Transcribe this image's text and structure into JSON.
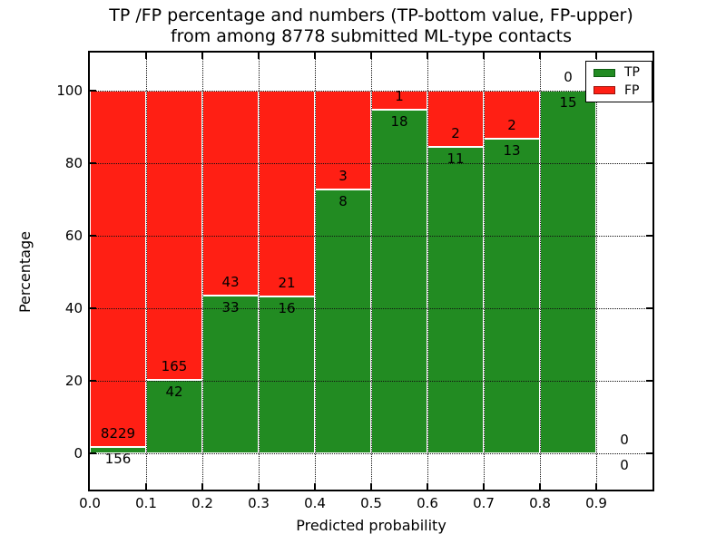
{
  "figure": {
    "title_line1": "TP /FP percentage and numbers (TP-bottom value, FP-upper)",
    "title_line2": "from among 8778 submitted ML-type contacts"
  },
  "axes": {
    "xlabel": "Predicted probability",
    "ylabel": "Percentage",
    "xtick_labels": [
      "0.0",
      "0.1",
      "0.2",
      "0.3",
      "0.4",
      "0.5",
      "0.6",
      "0.7",
      "0.8",
      "0.9"
    ],
    "ytick_values": [
      0,
      20,
      40,
      60,
      80,
      100
    ],
    "ytick_labels": [
      "0",
      "20",
      "40",
      "60",
      "80",
      "100"
    ],
    "xlim": [
      0.0,
      1.0
    ],
    "ylim": [
      -10,
      110
    ],
    "grid_style": "dotted"
  },
  "legend": {
    "position": "upper right",
    "entries": [
      {
        "label": "TP",
        "color": "#228b22",
        "edge": "#0e5c12"
      },
      {
        "label": "FP",
        "color": "#ff1f14",
        "edge": "#99120a"
      }
    ]
  },
  "colors": {
    "tp_green": "#228b22",
    "fp_red": "#ff1f14",
    "background": "#ffffff",
    "text": "#000000"
  },
  "chart_data": {
    "type": "bar",
    "stacked": true,
    "percent_normalized": true,
    "title": "TP /FP percentage and numbers (TP-bottom value, FP-upper) from among 8778 submitted ML-type contacts",
    "xlabel": "Predicted probability",
    "ylabel": "Percentage",
    "total_submitted": 8778,
    "bin_edges": [
      0.0,
      0.1,
      0.2,
      0.3,
      0.4,
      0.5,
      0.6,
      0.7,
      0.8,
      0.9,
      1.0
    ],
    "bin_labels": [
      "0.0-0.1",
      "0.1-0.2",
      "0.2-0.3",
      "0.3-0.4",
      "0.4-0.5",
      "0.5-0.6",
      "0.6-0.7",
      "0.7-0.8",
      "0.8-0.9",
      "0.9-1.0"
    ],
    "series": [
      {
        "name": "TP",
        "color": "#228b22",
        "counts": [
          156,
          42,
          33,
          16,
          8,
          18,
          11,
          13,
          15,
          0
        ]
      },
      {
        "name": "FP",
        "color": "#ff1f14",
        "counts": [
          8229,
          165,
          43,
          21,
          3,
          1,
          2,
          2,
          0,
          0
        ]
      }
    ],
    "tp_percent_per_bin": [
      1.86,
      20.29,
      43.42,
      43.24,
      72.73,
      94.74,
      84.62,
      86.67,
      100.0,
      null
    ],
    "ylim": [
      -10,
      110
    ],
    "grid": true,
    "legend_position": "upper right"
  }
}
